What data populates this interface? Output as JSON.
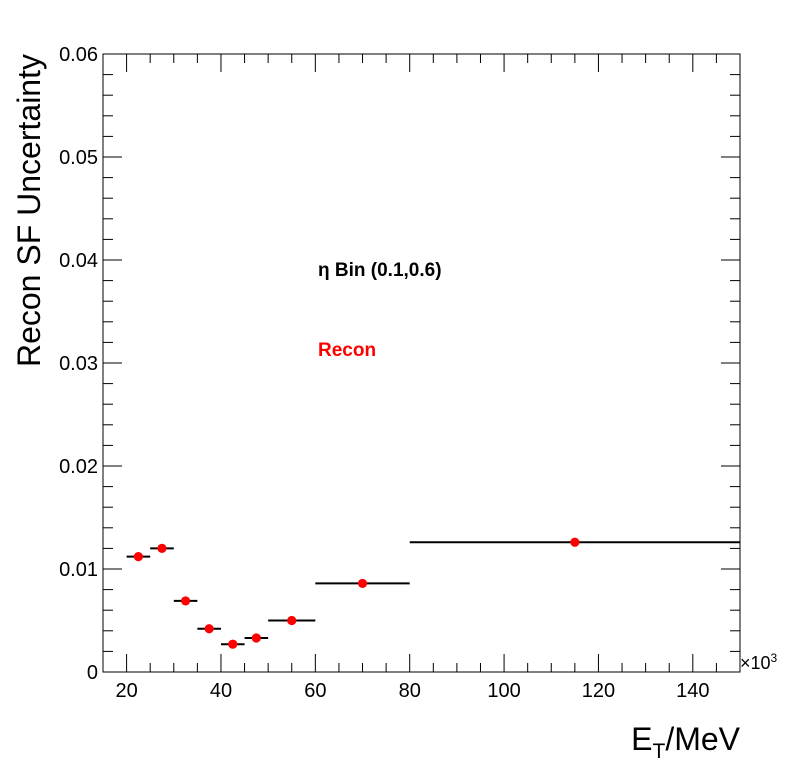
{
  "chart_data": {
    "type": "scatter",
    "title": "",
    "xlabel": {
      "main": "E",
      "sub": "T",
      "rest": "/MeV"
    },
    "ylabel": "Recon SF Uncertainty",
    "x_multiplier": "×10",
    "x_multiplier_exp": "3",
    "xlim": [
      15,
      150
    ],
    "ylim": [
      0,
      0.06
    ],
    "x_ticks": [
      20,
      40,
      60,
      80,
      100,
      120,
      140
    ],
    "x_tick_labels": [
      "20",
      "40",
      "60",
      "80",
      "100",
      "120",
      "140"
    ],
    "y_ticks": [
      0,
      0.01,
      0.02,
      0.03,
      0.04,
      0.05,
      0.06
    ],
    "y_tick_labels": [
      "0",
      "0.01",
      "0.02",
      "0.03",
      "0.04",
      "0.05",
      "0.06"
    ],
    "grid": false,
    "annotations": [
      {
        "text": "η Bin (0.1,0.6)",
        "color": "#000000"
      },
      {
        "text": "Recon",
        "color": "#ff0000"
      }
    ],
    "marker_color": "#ff0000",
    "errorbar_color": "#000000",
    "series": [
      {
        "points": [
          {
            "x": 22.5,
            "xlow": 20,
            "xhigh": 25,
            "y": 0.0112
          },
          {
            "x": 27.5,
            "xlow": 25,
            "xhigh": 30,
            "y": 0.012
          },
          {
            "x": 32.5,
            "xlow": 30,
            "xhigh": 35,
            "y": 0.0069
          },
          {
            "x": 37.5,
            "xlow": 35,
            "xhigh": 40,
            "y": 0.0042
          },
          {
            "x": 42.5,
            "xlow": 40,
            "xhigh": 45,
            "y": 0.0027
          },
          {
            "x": 47.5,
            "xlow": 45,
            "xhigh": 50,
            "y": 0.0033
          },
          {
            "x": 55,
            "xlow": 50,
            "xhigh": 60,
            "y": 0.005
          },
          {
            "x": 70,
            "xlow": 60,
            "xhigh": 80,
            "y": 0.0086
          },
          {
            "x": 115,
            "xlow": 80,
            "xhigh": 150,
            "y": 0.0126
          }
        ]
      }
    ]
  }
}
